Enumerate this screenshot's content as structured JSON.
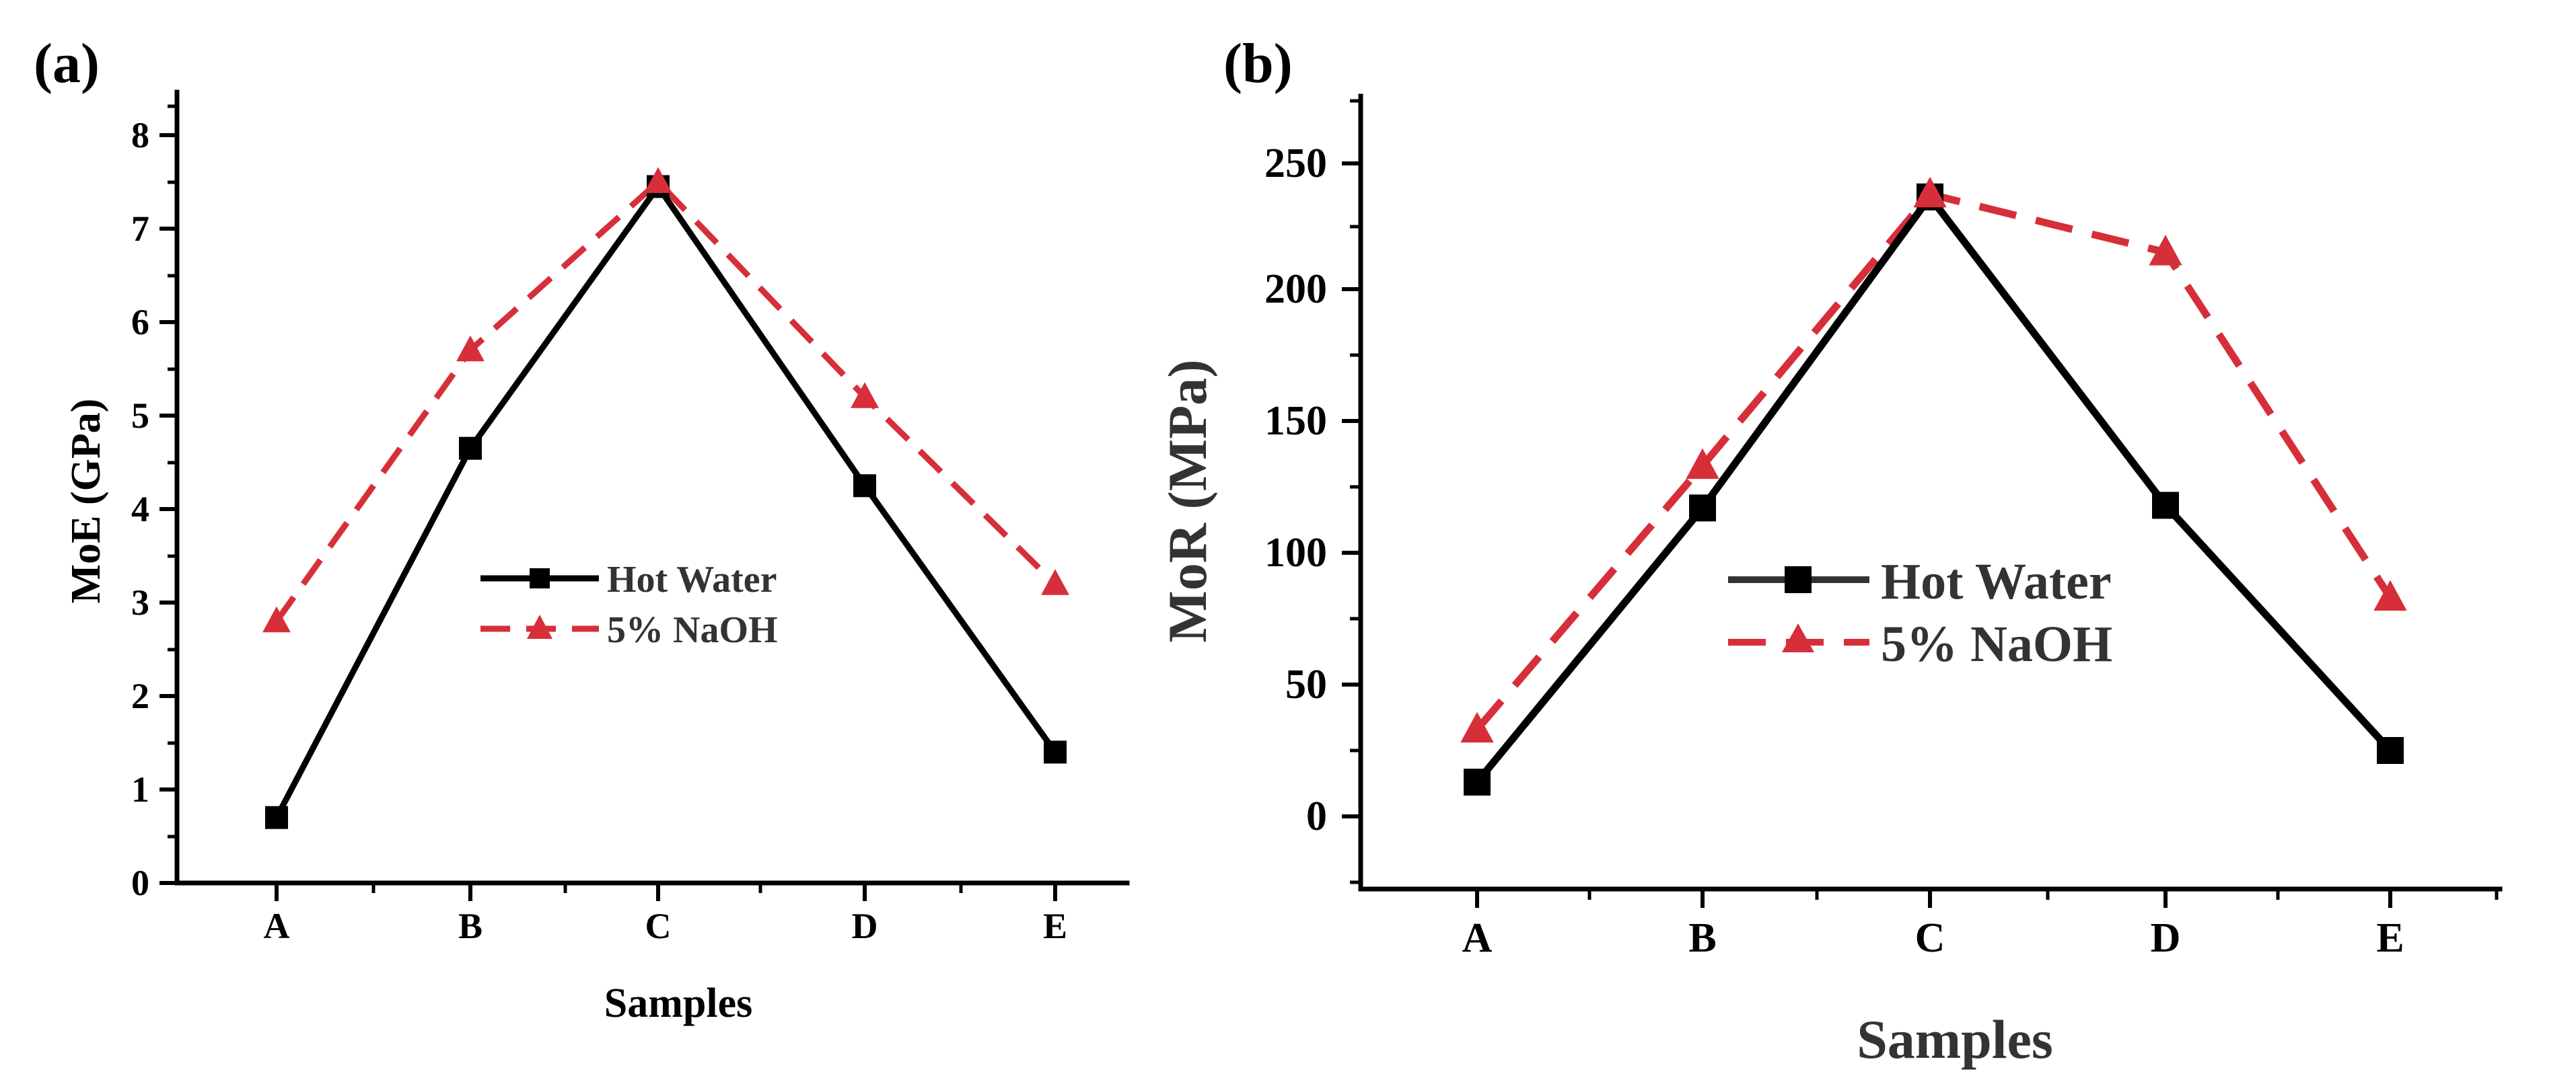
{
  "chart_data": [
    {
      "panel_label": "(a)",
      "type": "line",
      "categories": [
        "A",
        "B",
        "C",
        "D",
        "E"
      ],
      "series": [
        {
          "name": "Hot Water",
          "values": [
            0.7,
            4.65,
            7.45,
            4.25,
            1.4
          ],
          "color": "#000000",
          "marker": "square",
          "line_style": "solid"
        },
        {
          "name": "5% NaOH",
          "values": [
            2.8,
            5.7,
            7.5,
            5.2,
            3.2
          ],
          "color": "#d62f3a",
          "marker": "triangle",
          "line_style": "dashed"
        }
      ],
      "title": "",
      "xlabel": "Samples",
      "ylabel": "MoE (GPa)",
      "ylim": [
        0,
        8.5
      ],
      "yticks": [
        "0",
        "1",
        "2",
        "3",
        "4",
        "5",
        "6",
        "7",
        "8"
      ],
      "grid": false,
      "legend_position": "center"
    },
    {
      "panel_label": "(b)",
      "type": "line",
      "categories": [
        "A",
        "B",
        "C",
        "D",
        "E"
      ],
      "series": [
        {
          "name": "Hot Water",
          "values": [
            13,
            117,
            235,
            118,
            25
          ],
          "color": "#000000",
          "marker": "square",
          "line_style": "solid"
        },
        {
          "name": "5% NaOH",
          "values": [
            33,
            133,
            236,
            214,
            83
          ],
          "color": "#d62f3a",
          "marker": "triangle",
          "line_style": "dashed"
        }
      ],
      "title": "",
      "xlabel": "Samples",
      "ylabel": "MoR (MPa)",
      "ylim": [
        -27,
        275
      ],
      "yticks": [
        "0",
        "50",
        "100",
        "150",
        "200",
        "250"
      ],
      "grid": false,
      "legend_position": "center"
    }
  ]
}
